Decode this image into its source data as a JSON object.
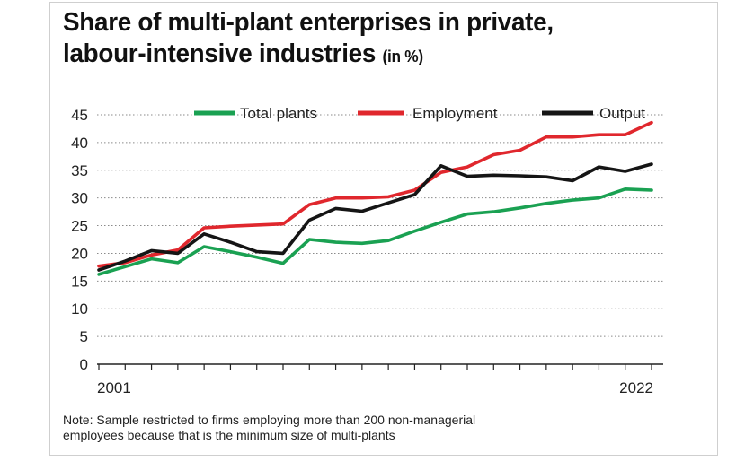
{
  "title": {
    "line1": "Share of multi-plant enterprises in private,",
    "line2": "labour-intensive industries",
    "unit": "(in %)"
  },
  "note": {
    "line1": "Note: Sample restricted to firms employing more than 200 non-managerial",
    "line2": "employees because that is the minimum size of multi-plants"
  },
  "chart_data": {
    "type": "line",
    "title": "Share of multi-plant enterprises in private, labour-intensive industries (in %)",
    "xlabel": "",
    "ylabel": "",
    "x": [
      2001,
      2002,
      2003,
      2004,
      2005,
      2006,
      2007,
      2008,
      2009,
      2010,
      2011,
      2012,
      2013,
      2014,
      2015,
      2016,
      2017,
      2018,
      2019,
      2020,
      2021,
      2022
    ],
    "x_tick_labels": [
      "2001",
      "2022"
    ],
    "y_ticks": [
      0,
      5,
      10,
      15,
      20,
      25,
      30,
      35,
      40,
      45
    ],
    "ylim": [
      0,
      45
    ],
    "grid": "horizontal dotted",
    "legend_position": "top",
    "series": [
      {
        "name": "Total plants",
        "color": "#1aa152",
        "values": [
          16.2,
          17.6,
          19.0,
          18.3,
          21.2,
          20.3,
          19.3,
          18.2,
          22.5,
          22.0,
          21.8,
          22.3,
          24.0,
          25.6,
          27.1,
          27.5,
          28.2,
          29.0,
          29.6,
          30.0,
          31.6,
          31.4
        ]
      },
      {
        "name": "Employment",
        "color": "#e0272d",
        "values": [
          17.7,
          18.3,
          19.7,
          20.6,
          24.6,
          24.9,
          25.1,
          25.3,
          28.8,
          30.0,
          30.0,
          30.2,
          31.4,
          34.6,
          35.6,
          37.8,
          38.6,
          41.0,
          41.0,
          41.4,
          41.4,
          43.6
        ]
      },
      {
        "name": "Output",
        "color": "#151515",
        "values": [
          17.0,
          18.6,
          20.5,
          20.0,
          23.5,
          22.0,
          20.3,
          20.0,
          26.0,
          28.1,
          27.6,
          29.1,
          30.6,
          35.8,
          33.9,
          34.1,
          34.0,
          33.8,
          33.1,
          35.6,
          34.8,
          36.1
        ]
      }
    ]
  }
}
